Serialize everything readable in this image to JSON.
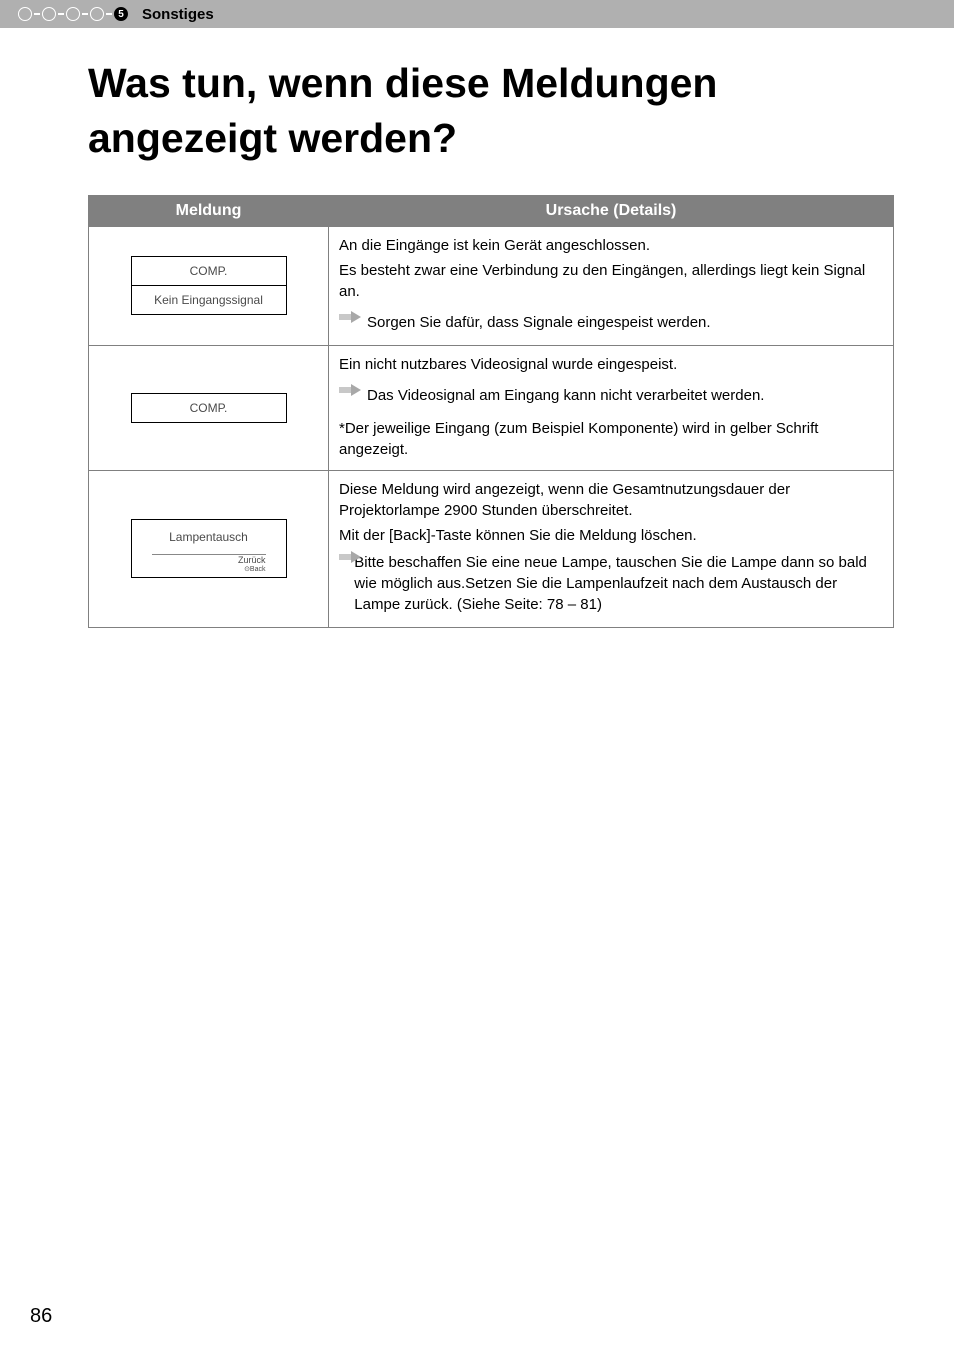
{
  "header": {
    "step_number": "5",
    "section_label": "Sonstiges"
  },
  "title": "Was tun, wenn diese Meldungen angezeigt werden?",
  "table": {
    "headers": {
      "meldung": "Meldung",
      "ursache": "Ursache (Details)"
    },
    "rows": [
      {
        "box_top": "COMP.",
        "box_bottom": "Kein Eingangssignal",
        "desc_line1": "An die Eingänge ist kein Gerät angeschlossen.",
        "desc_line2": "Es besteht zwar eine Verbindung zu den Eingängen, allerdings liegt kein Signal an.",
        "action": "Sorgen Sie dafür, dass Signale eingespeist werden."
      },
      {
        "box_top": "COMP.",
        "desc_line1": "Ein nicht nutzbares Videosignal wurde eingespeist.",
        "action": "Das Videosignal am Eingang kann nicht verarbeitet werden.",
        "note": "*Der jeweilige Eingang (zum Beispiel Komponente) wird in gelber Schrift angezeigt."
      },
      {
        "box_top": "Lampentausch",
        "box_sub": "Zurück",
        "box_sub2": "⊙Back",
        "desc_line1": "Diese Meldung wird angezeigt, wenn die Gesamtnutzungsdauer der Projektorlampe 2900 Stunden überschreitet.",
        "desc_line2": "Mit der [Back]-Taste können Sie die Meldung löschen.",
        "action": "Bitte beschaffen Sie eine neue Lampe, tauschen Sie die Lampe dann so bald wie möglich aus.Setzen Sie die Lampenlaufzeit nach dem Austausch der Lampe zurück. (Siehe Seite: 78 – 81)"
      }
    ]
  },
  "page_number": "86"
}
